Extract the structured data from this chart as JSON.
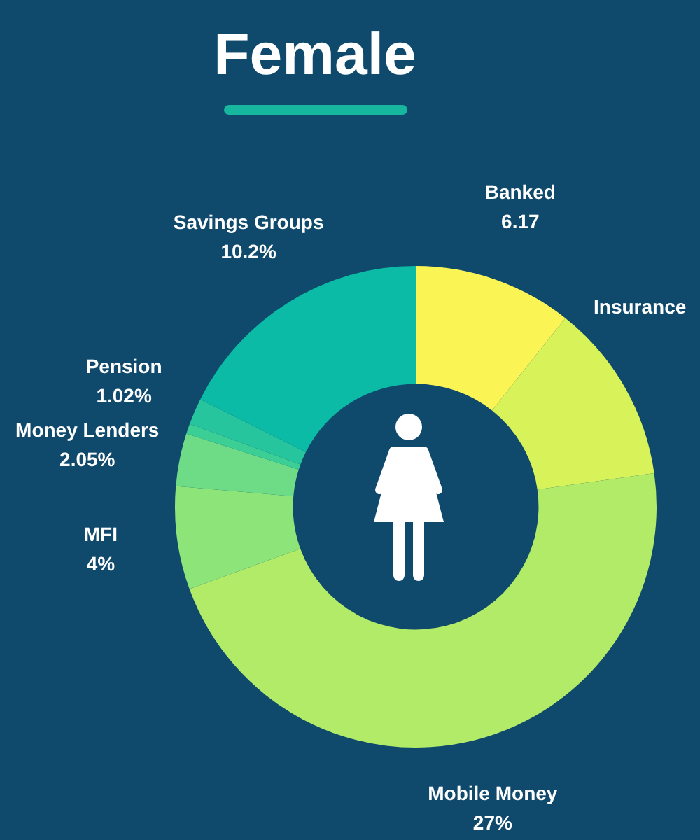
{
  "chart_data": {
    "type": "donut",
    "title": "Female",
    "categories": [
      "Banked",
      "Insurance",
      "Mobile Money",
      "MFI",
      "Money Lenders",
      null,
      "Pension",
      "Savings Groups"
    ],
    "values": [
      6.17,
      7,
      27,
      4,
      2.05,
      0.4,
      1.02,
      10.2
    ],
    "value_labels": [
      "6.17",
      null,
      "27%",
      "4%",
      "2.05%",
      null,
      "1.02%",
      "10.2%"
    ],
    "colors": [
      "#fbf455",
      "#d8f25a",
      "#b2eb68",
      "#8de57a",
      "#6edc86",
      "#3ccf95",
      "#26c59e",
      "#0cbba5"
    ]
  }
}
